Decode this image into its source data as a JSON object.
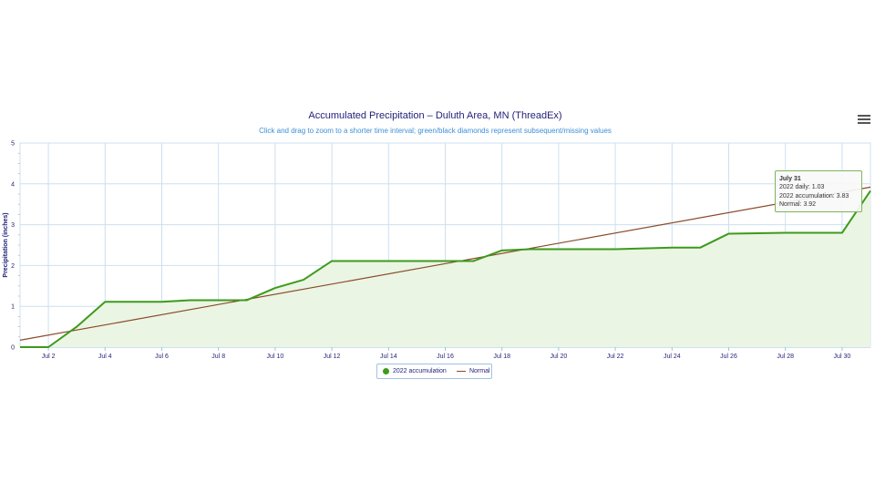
{
  "header": {
    "title": "Accumulated Precipitation – Duluth Area, MN (ThreadEx)",
    "subtitle": "Click and drag to zoom to a shorter time interval; green/black diamonds represent subsequent/missing values"
  },
  "colors": {
    "accumulation": "#3d9a1c",
    "normal": "#8a4a2a",
    "grid": "#cce0f0",
    "axis_text": "#1f1f7a",
    "fill": "#eaf5e3"
  },
  "legend": {
    "items": [
      {
        "label": "2022 accumulation",
        "marker": "circle"
      },
      {
        "label": "Normal",
        "marker": "line"
      }
    ]
  },
  "tooltip": {
    "title": "July 31",
    "line1": "2022 daily: 1.03",
    "line2": "2022 accumulation: 3.83",
    "line3": "Normal: 3.92"
  },
  "menu": {
    "icon": "hamburger-menu-icon"
  },
  "chart_data": {
    "type": "line",
    "ylabel": "Precipitation (inches)",
    "ylim": [
      0,
      5
    ],
    "yticks": [
      0,
      1,
      2,
      3,
      4,
      5
    ],
    "x_range_day": [
      1,
      31
    ],
    "xtick_days": [
      2,
      4,
      6,
      8,
      10,
      12,
      14,
      16,
      18,
      20,
      22,
      24,
      26,
      28,
      30
    ],
    "xtick_labels": [
      "Jul 2",
      "Jul 4",
      "Jul 6",
      "Jul 8",
      "Jul 10",
      "Jul 12",
      "Jul 14",
      "Jul 16",
      "Jul 18",
      "Jul 20",
      "Jul 22",
      "Jul 24",
      "Jul 26",
      "Jul 28",
      "Jul 30"
    ],
    "grid": true,
    "legend_position": "bottom-center",
    "series": [
      {
        "name": "2022 accumulation",
        "type": "area",
        "x": [
          1,
          2,
          3,
          4,
          5,
          6,
          7,
          8,
          9,
          10,
          11,
          12,
          13,
          14,
          15,
          16,
          17,
          18,
          19,
          20,
          21,
          22,
          23,
          24,
          25,
          26,
          27,
          28,
          29,
          30,
          31
        ],
        "values": [
          0.0,
          0.0,
          0.5,
          1.11,
          1.11,
          1.11,
          1.15,
          1.15,
          1.15,
          1.45,
          1.65,
          2.11,
          2.11,
          2.11,
          2.11,
          2.11,
          2.11,
          2.37,
          2.4,
          2.4,
          2.4,
          2.4,
          2.42,
          2.44,
          2.44,
          2.78,
          2.79,
          2.8,
          2.8,
          2.8,
          3.83
        ]
      },
      {
        "name": "Normal",
        "type": "line",
        "x": [
          1,
          31
        ],
        "values": [
          0.17,
          3.92
        ]
      }
    ]
  }
}
